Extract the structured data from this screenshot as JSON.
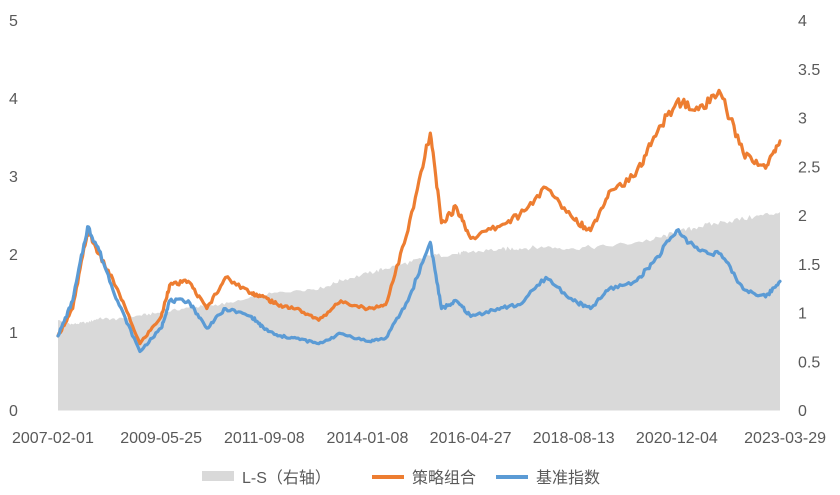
{
  "chart_data": {
    "type": "line",
    "grid": false,
    "legend_position": "bottom",
    "x_tick_labels": [
      "2007-02-01",
      "2009-05-25",
      "2011-09-08",
      "2014-01-08",
      "2016-04-27",
      "2018-08-13",
      "2020-12-04",
      "2023-03-29"
    ],
    "x_range": [
      "2007-02-01",
      "2023-03-29"
    ],
    "y_left": {
      "range": [
        0,
        5
      ],
      "ticks": [
        "0",
        "1",
        "2",
        "3",
        "4",
        "5"
      ]
    },
    "y_right": {
      "range": [
        0,
        4
      ],
      "ticks": [
        "0",
        "0.5",
        "1",
        "1.5",
        "2",
        "2.5",
        "3",
        "3.5",
        "4"
      ]
    },
    "series": [
      {
        "name": "L-S（右轴）",
        "type": "area",
        "axis": "right",
        "color": "#d9d9d9",
        "points": [
          [
            "2007-02-01",
            0.92
          ],
          [
            "2007-06-01",
            0.88
          ],
          [
            "2007-10-01",
            0.9
          ],
          [
            "2008-01-01",
            0.94
          ],
          [
            "2008-06-01",
            0.93
          ],
          [
            "2008-12-01",
            0.97
          ],
          [
            "2009-05-25",
            1.0
          ],
          [
            "2010-01-01",
            1.05
          ],
          [
            "2010-06-01",
            1.07
          ],
          [
            "2011-01-01",
            1.1
          ],
          [
            "2011-09-08",
            1.18
          ],
          [
            "2012-06-01",
            1.23
          ],
          [
            "2013-01-01",
            1.25
          ],
          [
            "2013-06-01",
            1.33
          ],
          [
            "2014-01-08",
            1.4
          ],
          [
            "2014-06-01",
            1.45
          ],
          [
            "2015-01-01",
            1.52
          ],
          [
            "2015-06-01",
            1.58
          ],
          [
            "2016-01-01",
            1.6
          ],
          [
            "2016-04-27",
            1.62
          ],
          [
            "2017-01-01",
            1.65
          ],
          [
            "2017-06-01",
            1.66
          ],
          [
            "2018-01-01",
            1.67
          ],
          [
            "2018-08-13",
            1.66
          ],
          [
            "2019-06-01",
            1.68
          ],
          [
            "2020-06-01",
            1.75
          ],
          [
            "2020-12-04",
            1.82
          ],
          [
            "2021-06-01",
            1.88
          ],
          [
            "2022-01-01",
            1.93
          ],
          [
            "2022-09-01",
            1.98
          ],
          [
            "2023-03-29",
            2.03
          ]
        ]
      },
      {
        "name": "策略组合",
        "type": "line",
        "axis": "left",
        "color": "#ed7d31",
        "points": [
          [
            "2007-02-01",
            0.95
          ],
          [
            "2007-06-01",
            1.3
          ],
          [
            "2007-10-01",
            2.3
          ],
          [
            "2008-01-01",
            2.0
          ],
          [
            "2008-06-01",
            1.55
          ],
          [
            "2008-12-01",
            0.85
          ],
          [
            "2009-05-25",
            1.2
          ],
          [
            "2009-08-01",
            1.6
          ],
          [
            "2010-01-01",
            1.65
          ],
          [
            "2010-06-01",
            1.3
          ],
          [
            "2010-11-01",
            1.7
          ],
          [
            "2011-06-01",
            1.5
          ],
          [
            "2011-09-08",
            1.45
          ],
          [
            "2012-01-01",
            1.35
          ],
          [
            "2012-06-01",
            1.3
          ],
          [
            "2012-12-01",
            1.15
          ],
          [
            "2013-06-01",
            1.4
          ],
          [
            "2014-01-08",
            1.3
          ],
          [
            "2014-06-01",
            1.35
          ],
          [
            "2014-12-01",
            2.3
          ],
          [
            "2015-06-01",
            3.55
          ],
          [
            "2015-09-01",
            2.4
          ],
          [
            "2016-01-01",
            2.6
          ],
          [
            "2016-04-27",
            2.2
          ],
          [
            "2016-12-01",
            2.35
          ],
          [
            "2017-06-01",
            2.5
          ],
          [
            "2018-01-01",
            2.85
          ],
          [
            "2018-08-13",
            2.45
          ],
          [
            "2019-01-01",
            2.3
          ],
          [
            "2019-06-01",
            2.8
          ],
          [
            "2020-01-01",
            3.0
          ],
          [
            "2020-06-01",
            3.5
          ],
          [
            "2020-12-04",
            3.95
          ],
          [
            "2021-06-01",
            3.85
          ],
          [
            "2021-12-01",
            4.05
          ],
          [
            "2022-06-01",
            3.3
          ],
          [
            "2022-12-01",
            3.1
          ],
          [
            "2023-03-29",
            3.45
          ]
        ]
      },
      {
        "name": "基准指数",
        "type": "line",
        "axis": "left",
        "color": "#5b9bd5",
        "points": [
          [
            "2007-02-01",
            0.95
          ],
          [
            "2007-06-01",
            1.4
          ],
          [
            "2007-10-01",
            2.35
          ],
          [
            "2008-01-01",
            2.05
          ],
          [
            "2008-06-01",
            1.4
          ],
          [
            "2008-12-01",
            0.75
          ],
          [
            "2009-05-25",
            1.05
          ],
          [
            "2009-08-01",
            1.4
          ],
          [
            "2010-01-01",
            1.4
          ],
          [
            "2010-06-01",
            1.05
          ],
          [
            "2010-11-01",
            1.3
          ],
          [
            "2011-06-01",
            1.2
          ],
          [
            "2011-09-08",
            1.05
          ],
          [
            "2012-01-01",
            0.95
          ],
          [
            "2012-06-01",
            0.92
          ],
          [
            "2012-12-01",
            0.85
          ],
          [
            "2013-06-01",
            0.98
          ],
          [
            "2014-01-08",
            0.88
          ],
          [
            "2014-06-01",
            0.92
          ],
          [
            "2014-12-01",
            1.4
          ],
          [
            "2015-06-01",
            2.15
          ],
          [
            "2015-09-01",
            1.3
          ],
          [
            "2016-01-01",
            1.4
          ],
          [
            "2016-04-27",
            1.2
          ],
          [
            "2016-12-01",
            1.3
          ],
          [
            "2017-06-01",
            1.35
          ],
          [
            "2018-01-01",
            1.7
          ],
          [
            "2018-08-13",
            1.4
          ],
          [
            "2019-01-01",
            1.3
          ],
          [
            "2019-06-01",
            1.55
          ],
          [
            "2020-01-01",
            1.65
          ],
          [
            "2020-06-01",
            1.9
          ],
          [
            "2020-12-04",
            2.3
          ],
          [
            "2021-06-01",
            2.05
          ],
          [
            "2021-12-01",
            2.0
          ],
          [
            "2022-06-01",
            1.55
          ],
          [
            "2022-12-01",
            1.45
          ],
          [
            "2023-03-29",
            1.65
          ]
        ]
      }
    ]
  }
}
